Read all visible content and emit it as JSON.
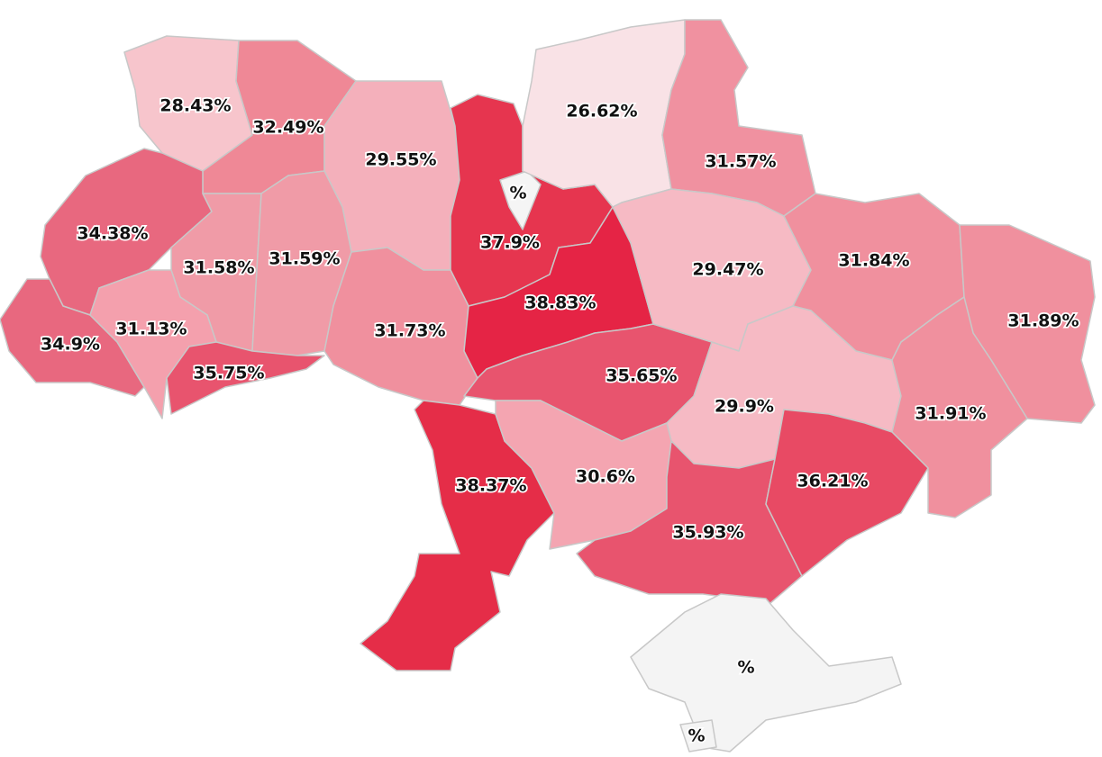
{
  "regions": [
    {
      "label": "28.43%",
      "color": "#f7c5cc"
    },
    {
      "label": "32.49%",
      "color": "#ef8896"
    },
    {
      "label": "29.55%",
      "color": "#f4b0bb"
    },
    {
      "label": "37.9%",
      "color": "#e6354f"
    },
    {
      "label": "%",
      "color": "#f5f5f5"
    },
    {
      "label": "26.62%",
      "color": "#f9e2e6"
    },
    {
      "label": "31.57%",
      "color": "#f091a0"
    },
    {
      "label": "34.38%",
      "color": "#e8687f"
    },
    {
      "label": "31.58%",
      "color": "#f09ba7"
    },
    {
      "label": "31.59%",
      "color": "#f09ba7"
    },
    {
      "label": "34.9%",
      "color": "#e8687f"
    },
    {
      "label": "31.13%",
      "color": "#f4a0ad"
    },
    {
      "label": "35.75%",
      "color": "#e8546e"
    },
    {
      "label": "31.73%",
      "color": "#f0909e"
    },
    {
      "label": "38.83%",
      "color": "#e52445"
    },
    {
      "label": "35.65%",
      "color": "#e8546e"
    },
    {
      "label": "29.47%",
      "color": "#f6bac4"
    },
    {
      "label": "31.84%",
      "color": "#f0909e"
    },
    {
      "label": "31.89%",
      "color": "#f0909e"
    },
    {
      "label": "29.9%",
      "color": "#f6bac4"
    },
    {
      "label": "31.91%",
      "color": "#f0909e"
    },
    {
      "label": "38.37%",
      "color": "#e52d48"
    },
    {
      "label": "30.6%",
      "color": "#f4a5b1"
    },
    {
      "label": "35.93%",
      "color": "#e8546e"
    },
    {
      "label": "36.21%",
      "color": "#e84a64"
    },
    {
      "label": "%",
      "color": "#f4f4f4"
    },
    {
      "label": "%",
      "color": "#f4f4f4"
    }
  ]
}
